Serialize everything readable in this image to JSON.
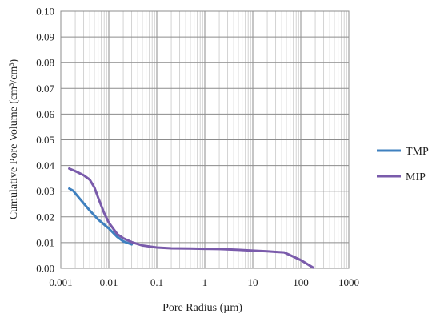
{
  "chart_data": {
    "type": "line",
    "xlabel": "Pore Radius (µm)",
    "ylabel": "Cumulative Pore Volume (cm³/cm³)",
    "xscale": "log",
    "xlim": [
      0.001,
      1000
    ],
    "ylim": [
      0,
      0.1
    ],
    "xticks": [
      "0.001",
      "0.01",
      "0.1",
      "1",
      "10",
      "100",
      "1000"
    ],
    "yticks": [
      "0.00",
      "0.01",
      "0.02",
      "0.03",
      "0.04",
      "0.05",
      "0.06",
      "0.07",
      "0.08",
      "0.09",
      "0.10"
    ],
    "grid": true,
    "legend_position": "right",
    "series": [
      {
        "name": "TMP",
        "color": "#3f80bf",
        "x": [
          0.0015,
          0.0018,
          0.0025,
          0.004,
          0.006,
          0.01,
          0.015,
          0.02,
          0.03
        ],
        "y": [
          0.031,
          0.0302,
          0.027,
          0.0225,
          0.019,
          0.0155,
          0.0122,
          0.0105,
          0.0093
        ]
      },
      {
        "name": "MIP",
        "color": "#7a5bab",
        "x": [
          0.0015,
          0.002,
          0.003,
          0.004,
          0.005,
          0.006,
          0.008,
          0.01,
          0.015,
          0.02,
          0.03,
          0.05,
          0.1,
          0.2,
          0.5,
          1,
          2,
          5,
          10,
          20,
          30,
          45,
          100,
          180
        ],
        "y": [
          0.0388,
          0.0378,
          0.0362,
          0.0345,
          0.0315,
          0.0275,
          0.0215,
          0.0178,
          0.0133,
          0.0117,
          0.0102,
          0.0089,
          0.0081,
          0.0078,
          0.0077,
          0.0076,
          0.0075,
          0.0072,
          0.0069,
          0.0066,
          0.0064,
          0.0062,
          0.0032,
          0.0003
        ]
      }
    ]
  }
}
